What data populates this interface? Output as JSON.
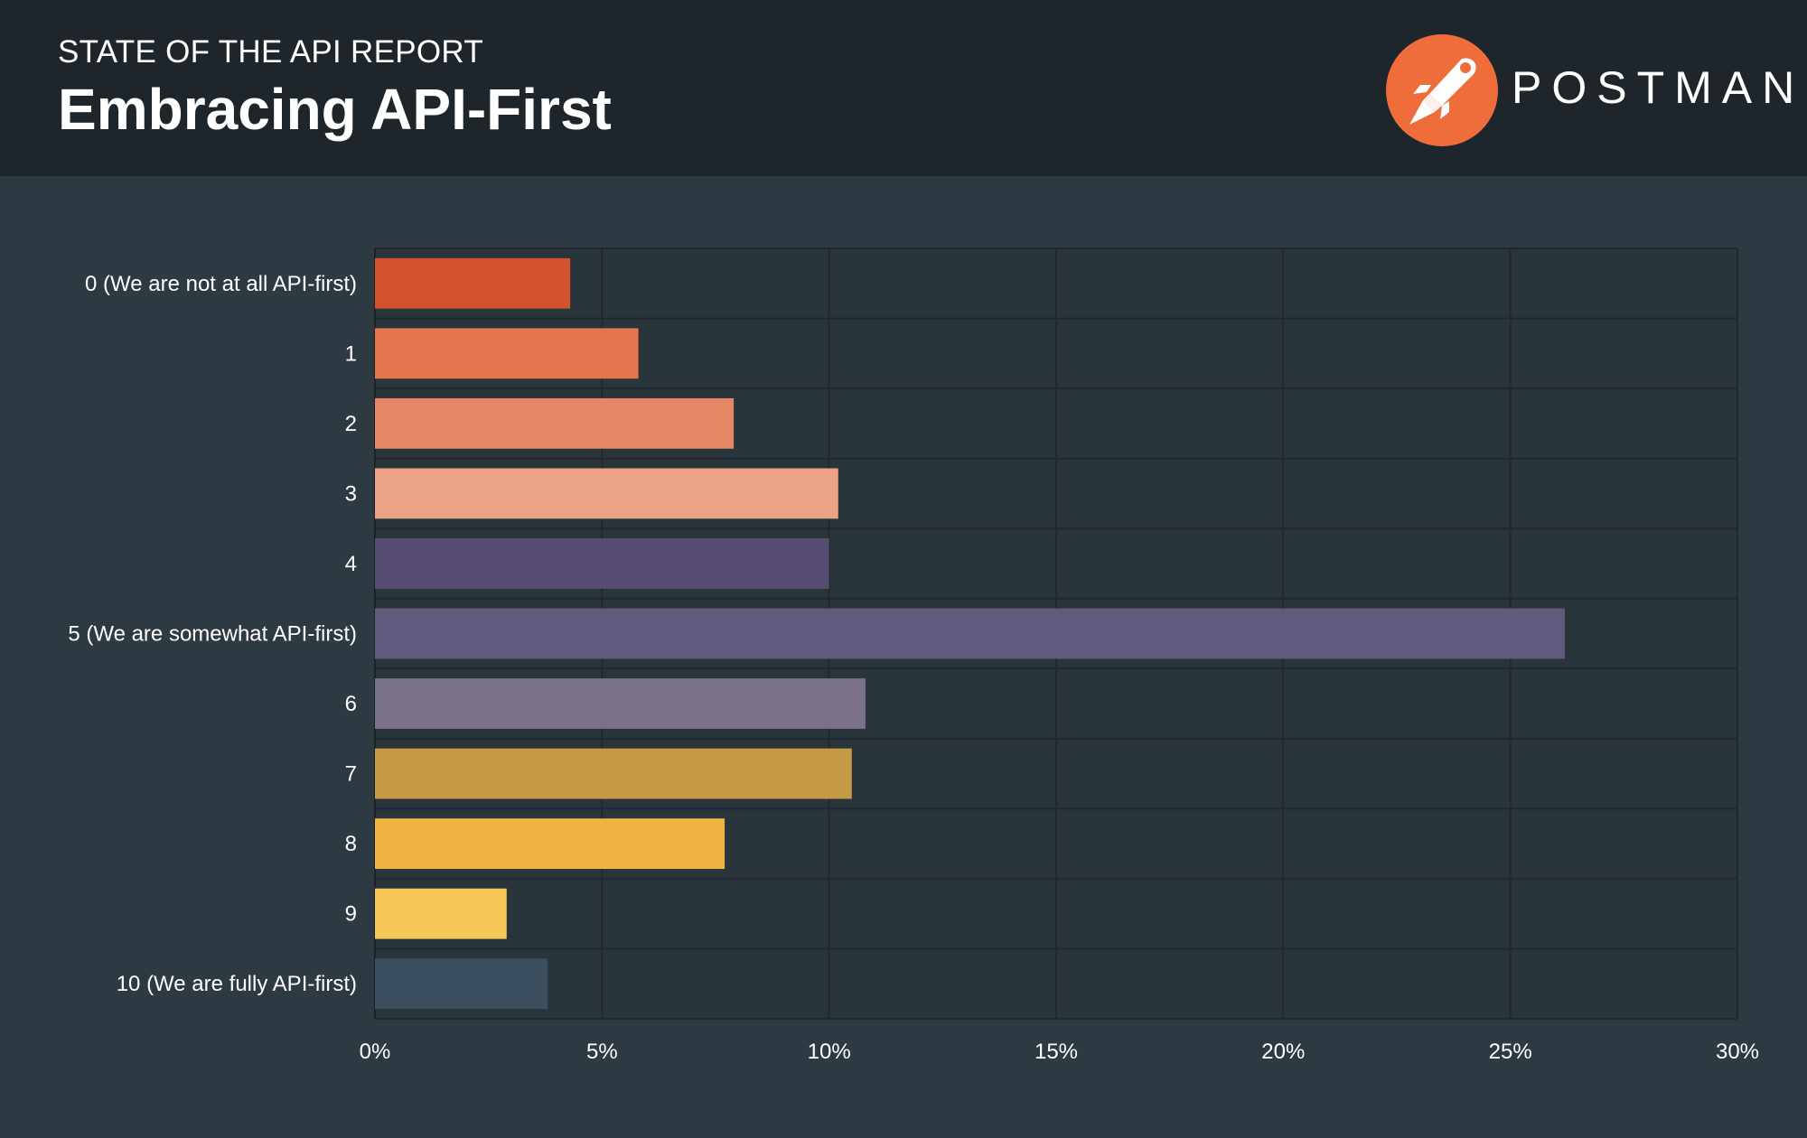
{
  "header": {
    "kicker": "STATE OF THE API REPORT",
    "title": "Embracing API-First",
    "brand": "POSTMAN",
    "logo_icon": "postman-rocket-icon",
    "logo_color": "#ef6c3b"
  },
  "chart_data": {
    "type": "bar",
    "orientation": "horizontal",
    "title": "Embracing API-First",
    "xlabel": "",
    "ylabel": "",
    "xlim": [
      0,
      30
    ],
    "grid": true,
    "categories": [
      "0 (We are not at all API-first)",
      "1",
      "2",
      "3",
      "4",
      "5 (We are somewhat API-first)",
      "6",
      "7",
      "8",
      "9",
      "10 (We are fully API-first)"
    ],
    "values": [
      4.3,
      5.8,
      7.9,
      10.2,
      10.0,
      26.2,
      10.8,
      10.5,
      7.7,
      2.9,
      3.8
    ],
    "colors": [
      "#d1542f",
      "#e5754f",
      "#e68868",
      "#eca284",
      "#574c71",
      "#625a7c",
      "#7a7189",
      "#c69944",
      "#f0b344",
      "#f5c759",
      "#3c4f5e"
    ],
    "ticks": [
      "0%",
      "5%",
      "10%",
      "15%",
      "20%",
      "25%",
      "30%"
    ],
    "tick_values": [
      0,
      5,
      10,
      15,
      20,
      25,
      30
    ]
  }
}
